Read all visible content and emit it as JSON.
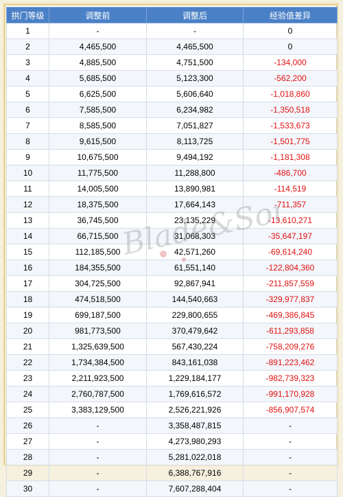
{
  "headers": [
    "拱门等级",
    "调整前",
    "调整后",
    "经验值差异"
  ],
  "rows": [
    [
      "1",
      "-",
      "-",
      "0"
    ],
    [
      "2",
      "4,465,500",
      "4,465,500",
      "0"
    ],
    [
      "3",
      "4,885,500",
      "4,751,500",
      "-134,000"
    ],
    [
      "4",
      "5,685,500",
      "5,123,300",
      "-562,200"
    ],
    [
      "5",
      "6,625,500",
      "5,606,640",
      "-1,018,860"
    ],
    [
      "6",
      "7,585,500",
      "6,234,982",
      "-1,350,518"
    ],
    [
      "7",
      "8,585,500",
      "7,051,827",
      "-1,533,673"
    ],
    [
      "8",
      "9,615,500",
      "8,113,725",
      "-1,501,775"
    ],
    [
      "9",
      "10,675,500",
      "9,494,192",
      "-1,181,308"
    ],
    [
      "10",
      "11,775,500",
      "11,288,800",
      "-486,700"
    ],
    [
      "11",
      "14,005,500",
      "13,890,981",
      "-114,519"
    ],
    [
      "12",
      "18,375,500",
      "17,664,143",
      "-711,357"
    ],
    [
      "13",
      "36,745,500",
      "23,135,229",
      "-13,610,271"
    ],
    [
      "14",
      "66,715,500",
      "31,068,303",
      "-35,647,197"
    ],
    [
      "15",
      "112,185,500",
      "42,571,260",
      "-69,614,240"
    ],
    [
      "16",
      "184,355,500",
      "61,551,140",
      "-122,804,360"
    ],
    [
      "17",
      "304,725,500",
      "92,867,941",
      "-211,857,559"
    ],
    [
      "18",
      "474,518,500",
      "144,540,663",
      "-329,977,837"
    ],
    [
      "19",
      "699,187,500",
      "229,800,655",
      "-469,386,845"
    ],
    [
      "20",
      "981,773,500",
      "370,479,642",
      "-611,293,858"
    ],
    [
      "21",
      "1,325,639,500",
      "567,430,224",
      "-758,209,276"
    ],
    [
      "22",
      "1,734,384,500",
      "843,161,038",
      "-891,223,462"
    ],
    [
      "23",
      "2,211,923,500",
      "1,229,184,177",
      "-982,739,323"
    ],
    [
      "24",
      "2,760,787,500",
      "1,769,616,572",
      "-991,170,928"
    ],
    [
      "25",
      "3,383,129,500",
      "2,526,221,926",
      "-856,907,574"
    ],
    [
      "26",
      "-",
      "3,358,487,815",
      "-"
    ],
    [
      "27",
      "-",
      "4,273,980,293",
      "-"
    ],
    [
      "28",
      "-",
      "5,281,022,018",
      "-"
    ],
    [
      "29",
      "-",
      "6,388,767,916",
      "-"
    ],
    [
      "30",
      "-",
      "7,607,288,404",
      "-"
    ]
  ],
  "colors": {
    "header_bg": "#4a80c6",
    "negative": "#e01010",
    "frame": "#e6cf8e"
  },
  "watermark": "Blade&Soul"
}
